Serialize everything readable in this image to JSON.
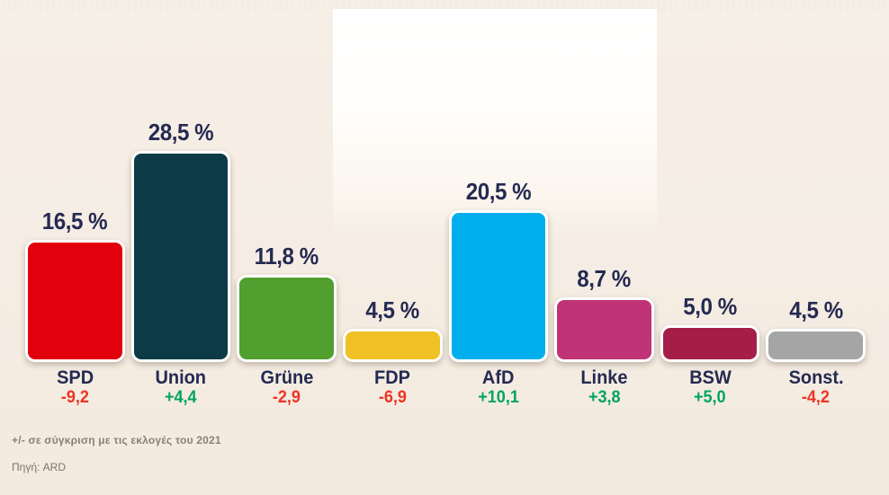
{
  "chart_data": {
    "type": "bar",
    "title": "",
    "unit": "%",
    "categories": [
      "SPD",
      "Union",
      "Grüne",
      "FDP",
      "AfD",
      "Linke",
      "BSW",
      "Sonst."
    ],
    "values": [
      16.5,
      28.5,
      11.8,
      4.5,
      20.5,
      8.7,
      5.0,
      4.5
    ],
    "value_labels": [
      "16,5 %",
      "28,5 %",
      "11,8 %",
      "4,5 %",
      "20,5 %",
      "8,7 %",
      "5,0 %",
      "4,5 %"
    ],
    "changes": [
      "-9,2",
      "+4,4",
      "-2,9",
      "-6,9",
      "+10,1",
      "+3,8",
      "+5,0",
      "-4,2"
    ],
    "change_directions": [
      "down",
      "up",
      "down",
      "down",
      "up",
      "up",
      "up",
      "down"
    ],
    "bar_colors": [
      "#e2000d",
      "#0c3a47",
      "#519f2e",
      "#f0c125",
      "#00aeed",
      "#c03377",
      "#a51d49",
      "#a5a5a5"
    ],
    "xlabel": "",
    "ylabel": "",
    "ylim": [
      0,
      30
    ],
    "grid": false,
    "legend": "none"
  },
  "footer": {
    "note": "+/- σε σύγκριση με τις εκλογές του 2021",
    "source": "Πηγή: ARD"
  },
  "colors": {
    "label_navy": "#252a52",
    "positive": "#00a45f",
    "negative": "#ee3424",
    "background": "#f5ede3",
    "bar_stroke": "#ffffff"
  }
}
